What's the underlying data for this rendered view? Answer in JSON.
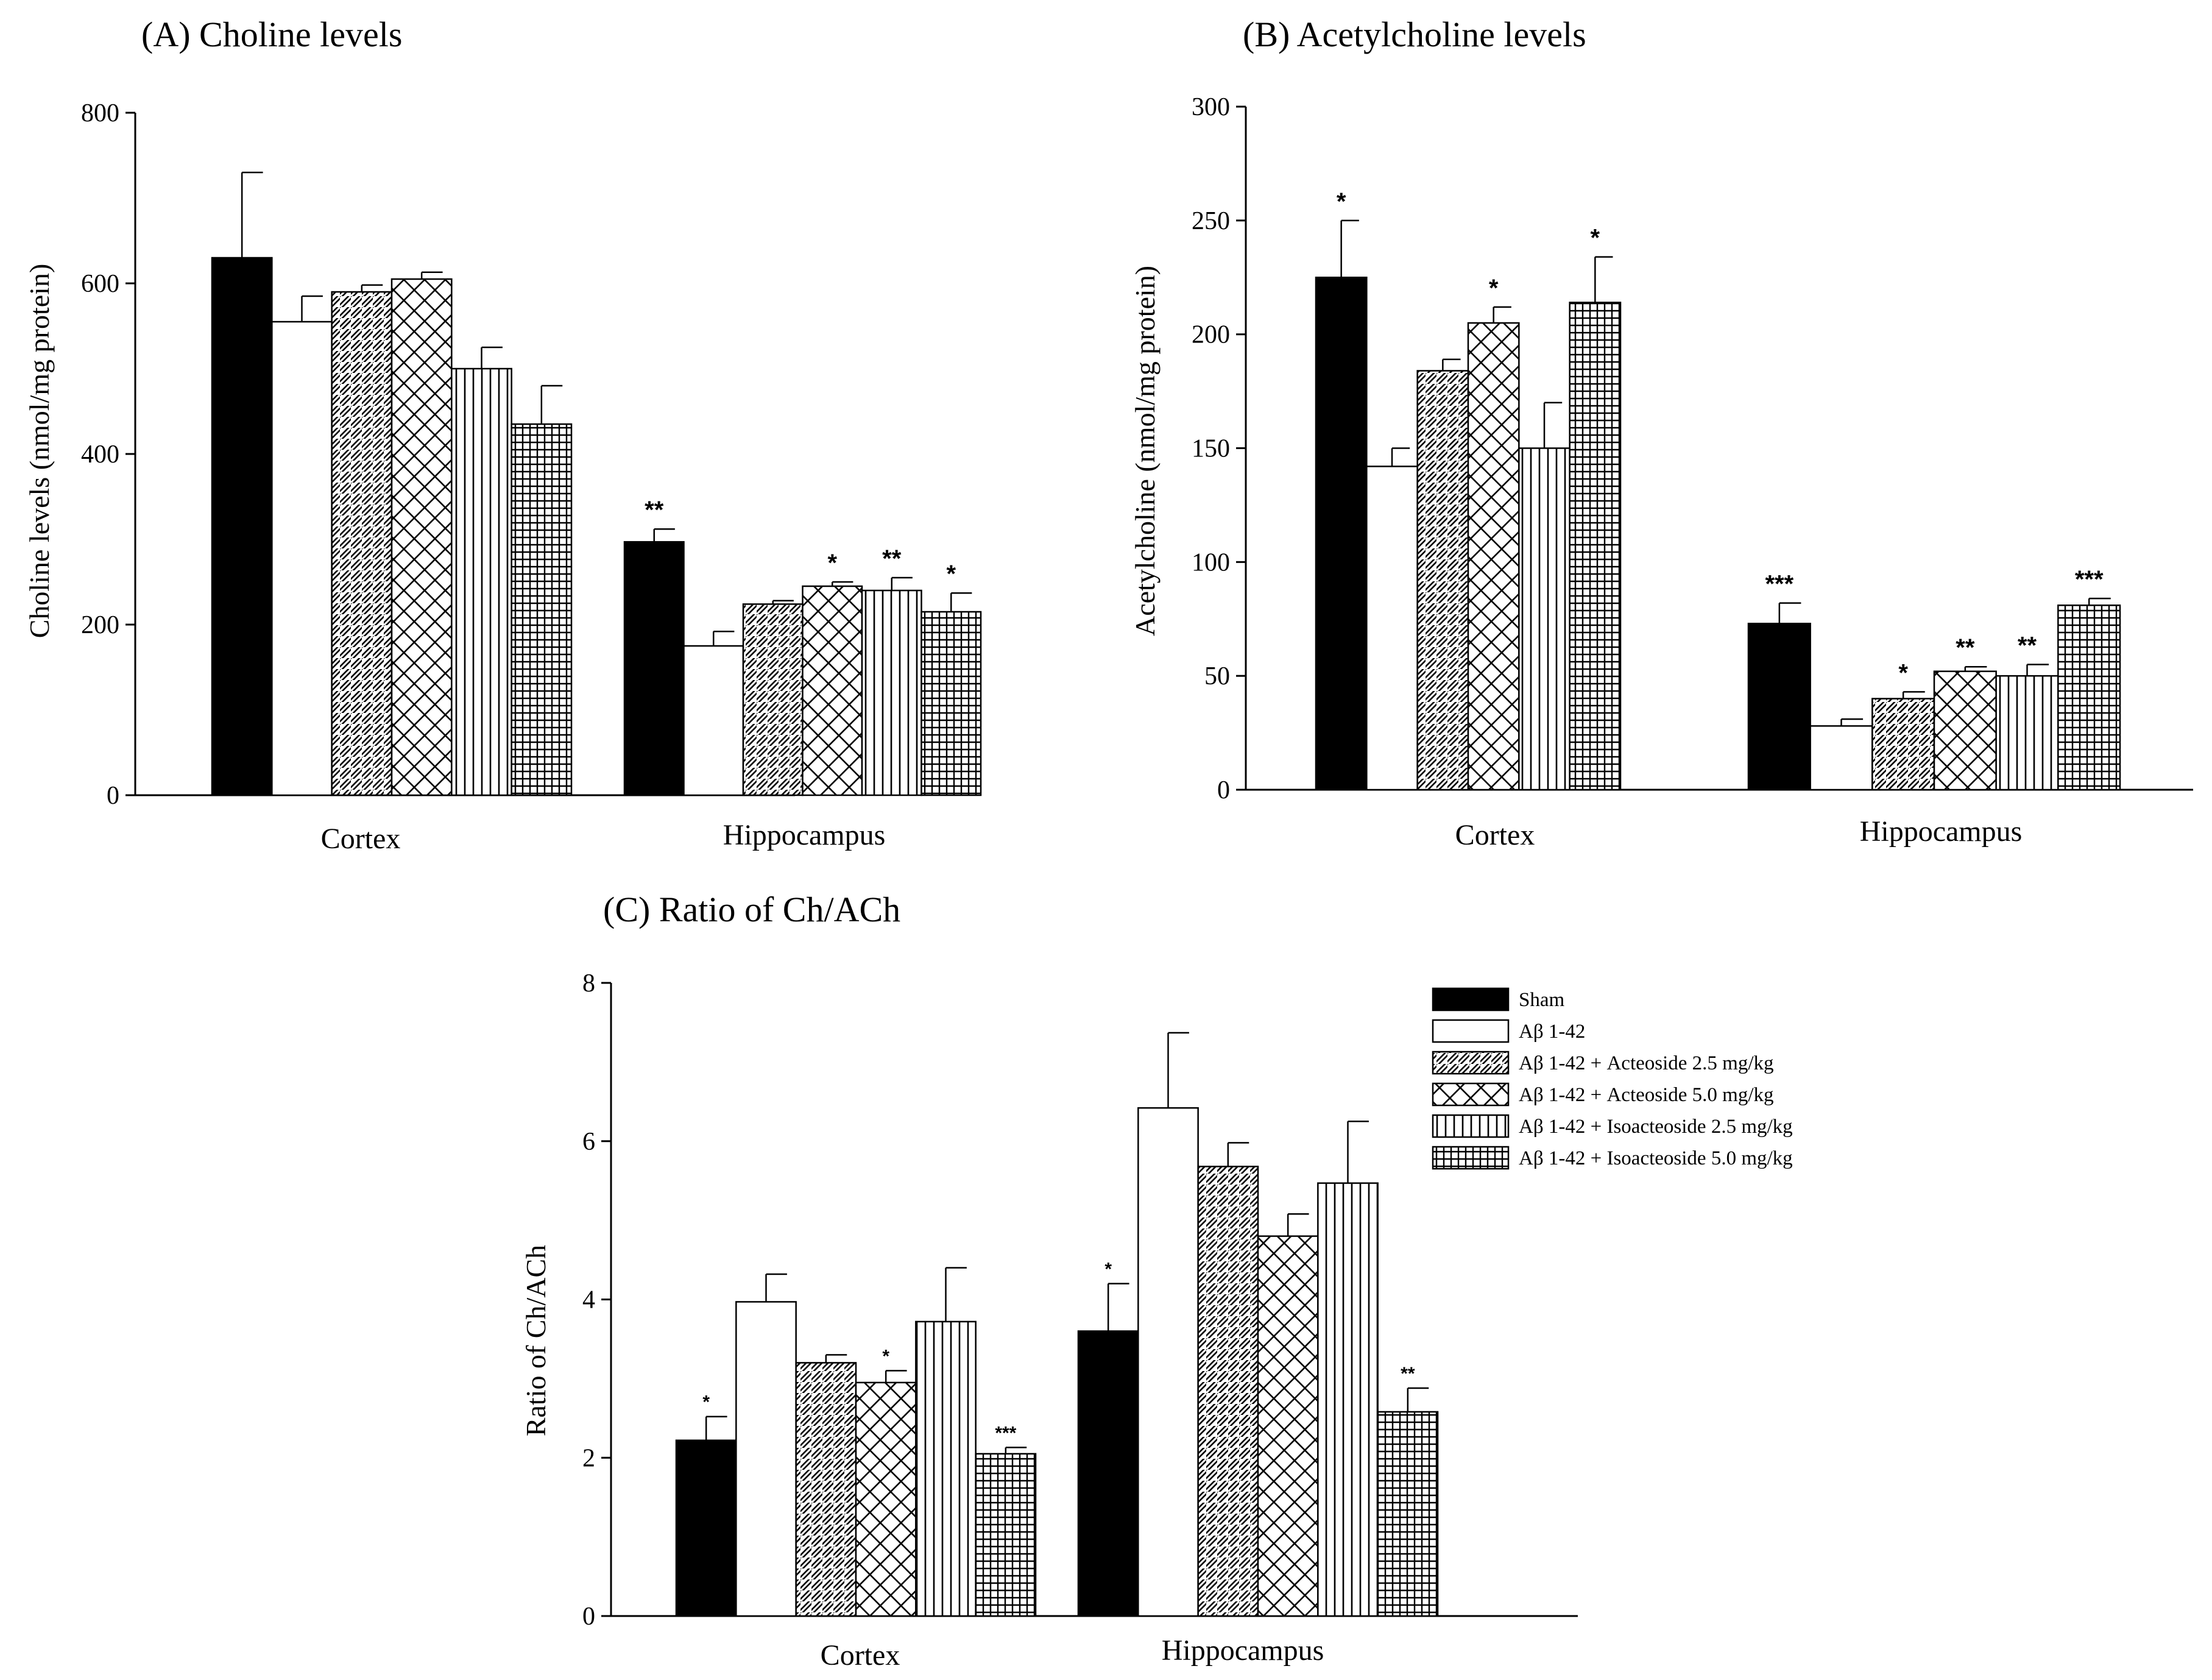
{
  "colors": {
    "ink": "#000000",
    "background": "#ffffff"
  },
  "legend": {
    "entries": [
      {
        "label": "Sham",
        "pattern": "solid"
      },
      {
        "label": "Aβ 1-42",
        "pattern": "open"
      },
      {
        "label": "Aβ 1-42 + Acteoside 2.5 mg/kg",
        "pattern": "diag"
      },
      {
        "label": "Aβ 1-42 + Acteoside 5.0 mg/kg",
        "pattern": "cross"
      },
      {
        "label": "Aβ 1-42 + Isoacteoside 2.5 mg/kg",
        "pattern": "vert"
      },
      {
        "label": "Aβ 1-42 + Isoacteoside 5.0 mg/kg",
        "pattern": "grid"
      }
    ]
  },
  "chart_data": [
    {
      "id": "A",
      "type": "bar",
      "title": "(A) Choline levels",
      "ylabel": "Choline levels (nmol/mg protein)",
      "xlabel": "",
      "ylim": [
        0,
        800
      ],
      "yticks": [
        0,
        200,
        400,
        600,
        800
      ],
      "categories": [
        "Cortex",
        "Hippocampus"
      ],
      "series": [
        {
          "name": "Sham",
          "values": [
            630,
            297
          ],
          "errors": [
            100,
            15
          ],
          "sig": [
            "",
            "**"
          ]
        },
        {
          "name": "Aβ 1-42",
          "values": [
            555,
            175
          ],
          "errors": [
            30,
            17
          ],
          "sig": [
            "",
            ""
          ]
        },
        {
          "name": "Aβ 1-42 + Acteoside 2.5 mg/kg",
          "values": [
            590,
            224
          ],
          "errors": [
            8,
            4
          ],
          "sig": [
            "",
            ""
          ]
        },
        {
          "name": "Aβ 1-42 + Acteoside 5.0 mg/kg",
          "values": [
            605,
            245
          ],
          "errors": [
            8,
            5
          ],
          "sig": [
            "",
            "*"
          ]
        },
        {
          "name": "Aβ 1-42 + Isoacteoside 2.5 mg/kg",
          "values": [
            500,
            240
          ],
          "errors": [
            25,
            15
          ],
          "sig": [
            "",
            "**"
          ]
        },
        {
          "name": "Aβ 1-42 + Isoacteoside 5.0 mg/kg",
          "values": [
            435,
            215
          ],
          "errors": [
            45,
            22
          ],
          "sig": [
            "",
            "*"
          ]
        }
      ]
    },
    {
      "id": "B",
      "type": "bar",
      "title": "(B) Acetylcholine levels",
      "ylabel": "Acetylcholine (nmol/mg protein)",
      "xlabel": "",
      "ylim": [
        0,
        300
      ],
      "yticks": [
        0,
        50,
        100,
        150,
        200,
        250,
        300
      ],
      "categories": [
        "Cortex",
        "Hippocampus"
      ],
      "series": [
        {
          "name": "Sham",
          "values": [
            225,
            73
          ],
          "errors": [
            25,
            9
          ],
          "sig": [
            "*",
            "***"
          ]
        },
        {
          "name": "Aβ 1-42",
          "values": [
            142,
            28
          ],
          "errors": [
            8,
            3
          ],
          "sig": [
            "",
            ""
          ]
        },
        {
          "name": "Aβ 1-42 + Acteoside 2.5 mg/kg",
          "values": [
            184,
            40
          ],
          "errors": [
            5,
            3
          ],
          "sig": [
            "",
            "*"
          ]
        },
        {
          "name": "Aβ 1-42 + Acteoside 5.0 mg/kg",
          "values": [
            205,
            52
          ],
          "errors": [
            7,
            2
          ],
          "sig": [
            "*",
            "**"
          ]
        },
        {
          "name": "Aβ 1-42 + Isoacteoside 2.5 mg/kg",
          "values": [
            150,
            50
          ],
          "errors": [
            20,
            5
          ],
          "sig": [
            "",
            "**"
          ]
        },
        {
          "name": "Aβ 1-42 + Isoacteoside 5.0 mg/kg",
          "values": [
            214,
            81
          ],
          "errors": [
            20,
            3
          ],
          "sig": [
            "*",
            "***"
          ]
        }
      ]
    },
    {
      "id": "C",
      "type": "bar",
      "title": "(C) Ratio of Ch/ACh",
      "ylabel": "Ratio of Ch/ACh",
      "xlabel": "",
      "ylim": [
        0,
        8
      ],
      "yticks": [
        0,
        2,
        4,
        6,
        8
      ],
      "categories": [
        "Cortex",
        "Hippocampus"
      ],
      "legend_position": "top-right",
      "series": [
        {
          "name": "Sham",
          "values": [
            2.22,
            3.6
          ],
          "errors": [
            0.3,
            0.6
          ],
          "sig": [
            "*",
            "*"
          ]
        },
        {
          "name": "Aβ 1-42",
          "values": [
            3.97,
            6.42
          ],
          "errors": [
            0.35,
            0.95
          ],
          "sig": [
            "",
            ""
          ]
        },
        {
          "name": "Aβ 1-42 + Acteoside 2.5 mg/kg",
          "values": [
            3.2,
            5.68
          ],
          "errors": [
            0.1,
            0.3
          ],
          "sig": [
            "",
            ""
          ]
        },
        {
          "name": "Aβ 1-42 + Acteoside 5.0 mg/kg",
          "values": [
            2.95,
            4.8
          ],
          "errors": [
            0.15,
            0.28
          ],
          "sig": [
            "*",
            ""
          ]
        },
        {
          "name": "Aβ 1-42 + Isoacteoside 2.5 mg/kg",
          "values": [
            3.72,
            5.47
          ],
          "errors": [
            0.68,
            0.78
          ],
          "sig": [
            "",
            ""
          ]
        },
        {
          "name": "Aβ 1-42 + Isoacteoside 5.0 mg/kg",
          "values": [
            2.05,
            2.58
          ],
          "errors": [
            0.08,
            0.3
          ],
          "sig": [
            "***",
            "**"
          ]
        }
      ]
    }
  ]
}
